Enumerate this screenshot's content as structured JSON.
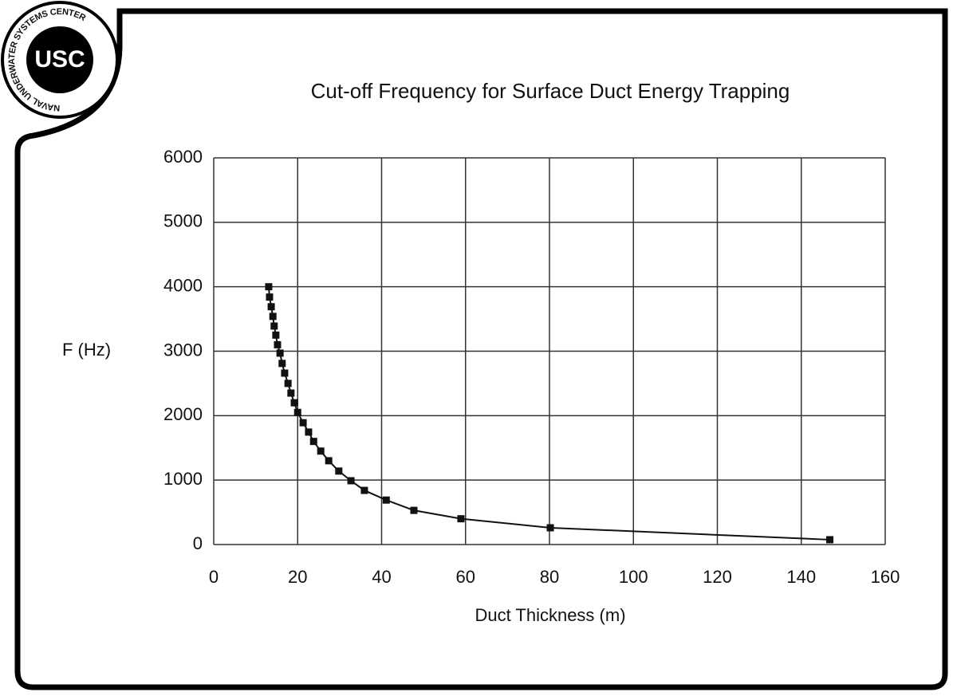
{
  "logo": {
    "initials": "USC",
    "name": "NAVAL UNDERWATER SYSTEMS CENTER"
  },
  "chart_data": {
    "type": "line",
    "title": "Cut-off Frequency for Surface Duct Energy Trapping",
    "x_label": "Duct Thickness (m)",
    "y_label": "F (Hz)",
    "x": [
      13.1,
      13.3,
      13.7,
      14.1,
      14.4,
      14.8,
      15.2,
      15.8,
      16.3,
      16.9,
      17.7,
      18.4,
      19.2,
      20.0,
      21.3,
      22.6,
      23.8,
      25.5,
      27.4,
      29.8,
      32.7,
      35.9,
      41.1,
      47.7,
      58.9,
      80.2,
      146.8
    ],
    "values": [
      4000,
      3840,
      3690,
      3540,
      3390,
      3250,
      3100,
      2970,
      2810,
      2660,
      2500,
      2350,
      2200,
      2050,
      1890,
      1745,
      1600,
      1450,
      1300,
      1140,
      990,
      840,
      690,
      530,
      400,
      260,
      75
    ],
    "color": "#111111",
    "xlim": [
      0,
      160
    ],
    "xticks": [
      0,
      20,
      40,
      60,
      80,
      100,
      120,
      140,
      160
    ],
    "ylim": [
      0,
      6000
    ],
    "yticks": [
      0,
      1000,
      2000,
      3000,
      4000,
      5000,
      6000
    ],
    "grid": true
  }
}
